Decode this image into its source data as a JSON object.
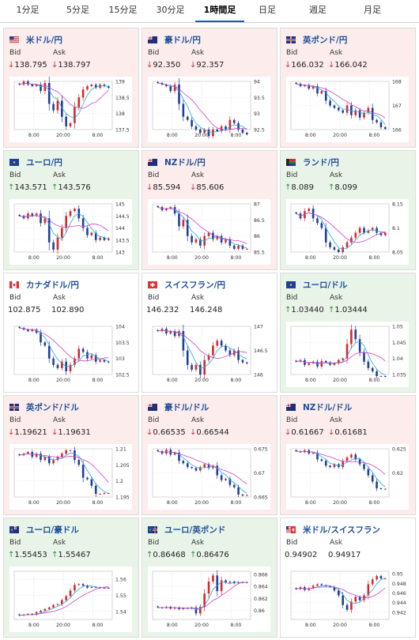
{
  "tabs": [
    "1分足",
    "5分足",
    "15分足",
    "30分足",
    "1時間足",
    "日足",
    "週足",
    "月足"
  ],
  "active_tab": 4,
  "labels": {
    "bid": "Bid",
    "ask": "Ask"
  },
  "cards": [
    {
      "pair": "米ドル/円",
      "bid": "138.795",
      "ask": "138.797",
      "dir": "down",
      "flag": "us",
      "chart_data": {
        "type": "candlestick",
        "ticks": [
          "139",
          "138.5",
          "138",
          "137.5"
        ],
        "tick_min": 137.5,
        "tick_max": 139,
        "x_labels": [
          "8:00",
          "20:00",
          "8:00"
        ],
        "close": [
          138.9,
          139.0,
          138.9,
          138.85,
          138.9,
          138.7,
          138.95,
          138.3,
          138.1,
          138.4,
          137.9,
          137.6,
          137.7,
          138.2,
          138.5,
          138.75,
          138.85,
          138.9,
          138.8,
          138.9,
          138.85,
          138.8
        ]
      }
    },
    {
      "pair": "豪ドル/円",
      "bid": "92.350",
      "ask": "92.357",
      "dir": "down",
      "flag": "au",
      "chart_data": {
        "type": "candlestick",
        "ticks": [
          "94",
          "93.5",
          "93",
          "92.5"
        ],
        "tick_min": 92.5,
        "tick_max": 94,
        "x_labels": [
          "8:00",
          "20:00",
          "8:00"
        ],
        "close": [
          93.95,
          93.9,
          93.85,
          93.7,
          93.9,
          93.3,
          92.9,
          92.8,
          92.6,
          92.5,
          92.4,
          92.5,
          92.3,
          92.5,
          92.45,
          92.6,
          92.5,
          92.8,
          92.7,
          92.5,
          92.4,
          92.35
        ]
      }
    },
    {
      "pair": "英ポンド/円",
      "bid": "166.032",
      "ask": "166.042",
      "dir": "down",
      "flag": "uk",
      "chart_data": {
        "type": "candlestick",
        "ticks": [
          "168",
          "167",
          "166"
        ],
        "tick_min": 166,
        "tick_max": 168,
        "x_labels": [
          "8:00",
          "20:00",
          "8:00"
        ],
        "close": [
          167.9,
          167.8,
          167.85,
          167.7,
          167.8,
          167.5,
          167.6,
          167.2,
          167.0,
          166.9,
          166.8,
          166.7,
          167.0,
          166.6,
          166.8,
          166.5,
          166.7,
          166.9,
          166.4,
          166.3,
          166.1,
          166.03
        ]
      }
    },
    {
      "pair": "ユーロ/円",
      "bid": "143.571",
      "ask": "143.576",
      "dir": "up",
      "flag": "eu",
      "chart_data": {
        "type": "candlestick",
        "ticks": [
          "145",
          "144.5",
          "144",
          "143.5",
          "143"
        ],
        "tick_min": 143,
        "tick_max": 145,
        "x_labels": [
          "8:00",
          "20:00",
          "8:00"
        ],
        "close": [
          144.5,
          144.4,
          144.6,
          144.5,
          144.6,
          144.2,
          144.4,
          143.4,
          143.1,
          143.6,
          144.0,
          144.5,
          144.7,
          144.8,
          144.4,
          144.0,
          143.7,
          143.8,
          143.5,
          143.6,
          143.5,
          143.57
        ]
      }
    },
    {
      "pair": "NZドル/円",
      "bid": "85.594",
      "ask": "85.606",
      "dir": "down",
      "flag": "nz",
      "chart_data": {
        "type": "candlestick",
        "ticks": [
          "87",
          "86.5",
          "86",
          "85.5"
        ],
        "tick_min": 85.5,
        "tick_max": 87,
        "x_labels": [
          "8:00",
          "20:00",
          "8:00"
        ],
        "close": [
          86.9,
          86.8,
          86.85,
          86.9,
          86.7,
          86.3,
          86.5,
          86.0,
          85.8,
          85.9,
          85.7,
          86.0,
          86.1,
          85.9,
          86.0,
          85.8,
          85.9,
          85.7,
          85.6,
          85.7,
          85.6,
          85.6
        ]
      }
    },
    {
      "pair": "ランド/円",
      "bid": "8.089",
      "ask": "8.099",
      "dir": "up",
      "flag": "za",
      "chart_data": {
        "type": "candlestick",
        "ticks": [
          "8.15",
          "8.1",
          "8.05"
        ],
        "tick_min": 8.05,
        "tick_max": 8.15,
        "x_labels": [
          "8:00",
          "20:00",
          "8:00"
        ],
        "close": [
          8.13,
          8.12,
          8.135,
          8.14,
          8.12,
          8.11,
          8.1,
          8.07,
          8.06,
          8.055,
          8.05,
          8.06,
          8.07,
          8.08,
          8.09,
          8.1,
          8.09,
          8.095,
          8.1,
          8.09,
          8.085,
          8.09
        ]
      }
    },
    {
      "pair": "カナダドル/円",
      "bid": "102.875",
      "ask": "102.890",
      "dir": "flat",
      "flag": "ca",
      "chart_data": {
        "type": "candlestick",
        "ticks": [
          "104",
          "103.5",
          "103",
          "102.5"
        ],
        "tick_min": 102.5,
        "tick_max": 104,
        "x_labels": [
          "8:00",
          "20:00",
          "8:00"
        ],
        "close": [
          103.95,
          103.9,
          103.85,
          103.9,
          103.8,
          103.5,
          103.4,
          103.0,
          102.8,
          102.7,
          102.9,
          102.6,
          102.8,
          103.0,
          103.3,
          103.2,
          103.0,
          103.1,
          102.9,
          102.95,
          102.9,
          102.88
        ]
      }
    },
    {
      "pair": "スイスフラン/円",
      "bid": "146.232",
      "ask": "146.248",
      "dir": "flat",
      "flag": "ch",
      "chart_data": {
        "type": "candlestick",
        "ticks": [
          "147",
          "146.5",
          "146"
        ],
        "tick_min": 146,
        "tick_max": 147,
        "x_labels": [
          "8:00",
          "20:00",
          "8:00"
        ],
        "close": [
          146.9,
          146.95,
          146.85,
          146.9,
          146.8,
          146.9,
          146.5,
          146.2,
          146.1,
          146.2,
          146.0,
          146.3,
          146.4,
          146.6,
          146.7,
          146.6,
          146.5,
          146.4,
          146.5,
          146.3,
          146.25,
          146.23
        ]
      }
    },
    {
      "pair": "ユーロ/ドル",
      "bid": "1.03440",
      "ask": "1.03444",
      "dir": "up",
      "flag": "eu",
      "chart_data": {
        "type": "candlestick",
        "ticks": [
          "1.05",
          "1.045",
          "1.04",
          "1.035"
        ],
        "tick_min": 1.035,
        "tick_max": 1.05,
        "x_labels": [
          "8:00",
          "20:00",
          "8:00"
        ],
        "close": [
          1.039,
          1.0395,
          1.038,
          1.0385,
          1.039,
          1.0375,
          1.0392,
          1.0388,
          1.038,
          1.0385,
          1.0395,
          1.04,
          1.0445,
          1.049,
          1.046,
          1.042,
          1.039,
          1.037,
          1.036,
          1.0345,
          1.0345,
          1.0344
        ]
      }
    },
    {
      "pair": "英ポンド/ドル",
      "bid": "1.19621",
      "ask": "1.19631",
      "dir": "down",
      "flag": "uk",
      "chart_data": {
        "type": "candlestick",
        "ticks": [
          "1.21",
          "1.205",
          "1.2",
          "1.195"
        ],
        "tick_min": 1.195,
        "tick_max": 1.21,
        "x_labels": [
          "8:00",
          "20:00",
          "8:00"
        ],
        "close": [
          1.208,
          1.2085,
          1.209,
          1.2075,
          1.2085,
          1.2065,
          1.2075,
          1.2055,
          1.2065,
          1.2075,
          1.2085,
          1.2095,
          1.2095,
          1.2065,
          1.205,
          1.201,
          1.2005,
          1.1985,
          1.196,
          1.196,
          1.1962,
          1.1962
        ]
      }
    },
    {
      "pair": "豪ドル/ドル",
      "bid": "0.66535",
      "ask": "0.66544",
      "dir": "down",
      "flag": "au",
      "chart_data": {
        "type": "candlestick",
        "ticks": [
          "0.675",
          "0.67",
          "0.665"
        ],
        "tick_min": 0.665,
        "tick_max": 0.675,
        "x_labels": [
          "8:00",
          "20:00",
          "8:00"
        ],
        "close": [
          0.6745,
          0.674,
          0.6748,
          0.6738,
          0.6742,
          0.6725,
          0.672,
          0.6712,
          0.671,
          0.6705,
          0.6712,
          0.6718,
          0.671,
          0.6715,
          0.6695,
          0.6685,
          0.6688,
          0.6675,
          0.667,
          0.6655,
          0.6653,
          0.6654
        ]
      }
    },
    {
      "pair": "NZドル/ドル",
      "bid": "0.61667",
      "ask": "0.61681",
      "dir": "down",
      "flag": "nz",
      "chart_data": {
        "type": "candlestick",
        "ticks": [
          "0.625",
          "0.62"
        ],
        "tick_min": 0.615,
        "tick_max": 0.625,
        "x_labels": [
          "8:00",
          "20:00",
          "8:00"
        ],
        "close": [
          0.6245,
          0.6243,
          0.6247,
          0.624,
          0.6242,
          0.6228,
          0.6225,
          0.6215,
          0.6212,
          0.6218,
          0.6212,
          0.6225,
          0.6232,
          0.6238,
          0.6228,
          0.6218,
          0.6208,
          0.6195,
          0.6182,
          0.6168,
          0.6167,
          0.6167
        ]
      }
    },
    {
      "pair": "ユーロ/豪ドル",
      "bid": "1.55453",
      "ask": "1.55467",
      "dir": "up",
      "flag": "eu-au",
      "chart_data": {
        "type": "candlestick",
        "ticks": [
          "1.56",
          "1.55",
          "1.54"
        ],
        "tick_min": 1.535,
        "tick_max": 1.565,
        "x_labels": [
          "8:00",
          "20:00",
          "8:00"
        ],
        "close": [
          1.5375,
          1.538,
          1.5385,
          1.538,
          1.5395,
          1.5405,
          1.5415,
          1.5425,
          1.544,
          1.5445,
          1.547,
          1.5495,
          1.553,
          1.5565,
          1.557,
          1.556,
          1.5548,
          1.5552,
          1.555,
          1.5545,
          1.5546,
          1.5545
        ]
      }
    },
    {
      "pair": "ユーロ/英ポンド",
      "bid": "0.86468",
      "ask": "0.86476",
      "dir": "up",
      "flag": "eu-uk",
      "chart_data": {
        "type": "candlestick",
        "ticks": [
          "0.866",
          "0.864",
          "0.862",
          "0.86"
        ],
        "tick_min": 0.8585,
        "tick_max": 0.8665,
        "x_labels": [
          "8:00",
          "20:00",
          "8:00"
        ],
        "close": [
          0.8605,
          0.8604,
          0.8606,
          0.8603,
          0.8605,
          0.8602,
          0.8604,
          0.8603,
          0.8605,
          0.8595,
          0.8606,
          0.8628,
          0.8648,
          0.8658,
          0.8632,
          0.865,
          0.8646,
          0.8648,
          0.8645,
          0.8647,
          0.8646,
          0.8647
        ]
      }
    },
    {
      "pair": "米ドル/スイスフラン",
      "bid": "0.94902",
      "ask": "0.94917",
      "dir": "flat",
      "flag": "us-ch",
      "chart_data": {
        "type": "candlestick",
        "ticks": [
          "0.95",
          "0.948",
          "0.946",
          "0.944",
          "0.942"
        ],
        "tick_min": 0.9405,
        "tick_max": 0.9505,
        "x_labels": [
          "8:00",
          "20:00",
          "8:00"
        ],
        "close": [
          0.9468,
          0.9472,
          0.9466,
          0.947,
          0.9475,
          0.9478,
          0.9476,
          0.9474,
          0.9472,
          0.9465,
          0.9455,
          0.9435,
          0.9425,
          0.9442,
          0.9452,
          0.9445,
          0.9455,
          0.9478,
          0.9488,
          0.9495,
          0.949,
          0.949
        ]
      }
    }
  ],
  "colors": {
    "up_candle": "#d42a2a",
    "down_candle": "#1f3f9a",
    "ma_short": "#28a8d8",
    "ma_long": "#cc44cc",
    "down_bg": "#fcecec",
    "up_bg": "#e9f4e9"
  }
}
